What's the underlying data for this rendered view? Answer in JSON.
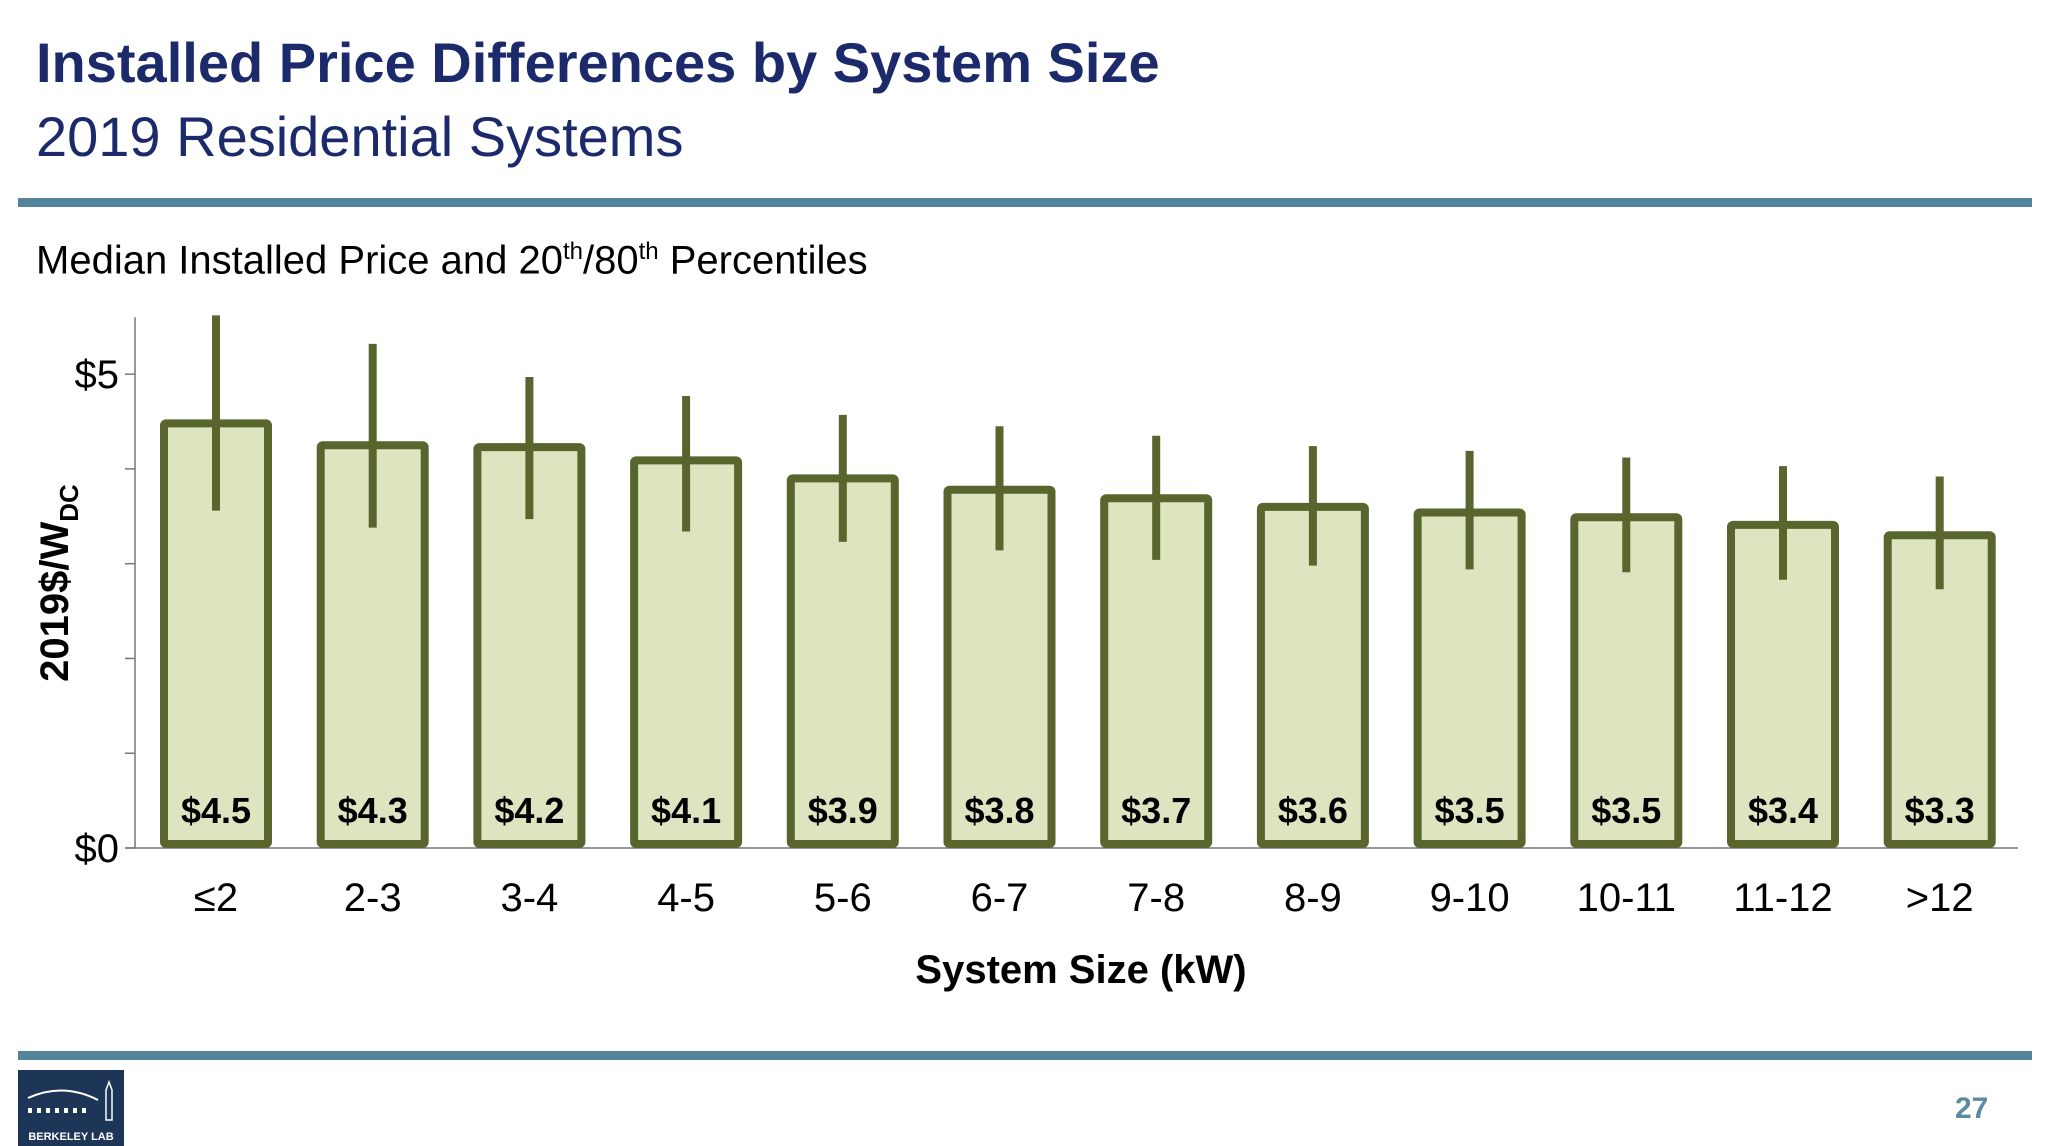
{
  "header": {
    "title": "Installed Price Differences by System Size",
    "subtitle": "2019 Residential Systems"
  },
  "chart_heading": {
    "text": "Median Installed Price and 20",
    "sup1": "th",
    "mid": "/80",
    "sup2": "th",
    "end": " Percentiles"
  },
  "chart_data": {
    "type": "bar",
    "title": "Median Installed Price and 20th/80th Percentiles",
    "xlabel": "System Size (kW)",
    "ylabel": "2019$/W",
    "ylabel_sub": "DC",
    "categories": [
      "≤2",
      "2-3",
      "3-4",
      "4-5",
      "5-6",
      "6-7",
      "7-8",
      "8-9",
      "9-10",
      "10-11",
      "11-12",
      ">12"
    ],
    "median": [
      4.48,
      4.25,
      4.23,
      4.09,
      3.9,
      3.78,
      3.69,
      3.6,
      3.54,
      3.49,
      3.41,
      3.3
    ],
    "p20": [
      3.56,
      3.38,
      3.47,
      3.34,
      3.23,
      3.14,
      3.04,
      2.98,
      2.94,
      2.91,
      2.83,
      2.73
    ],
    "p80": [
      5.62,
      5.32,
      4.97,
      4.77,
      4.57,
      4.45,
      4.35,
      4.24,
      4.19,
      4.12,
      4.03,
      3.92
    ],
    "data_labels": [
      "$4.5",
      "$4.3",
      "$4.2",
      "$4.1",
      "$3.9",
      "$3.8",
      "$3.7",
      "$3.6",
      "$3.5",
      "$3.5",
      "$3.4",
      "$3.3"
    ],
    "ylim": [
      0,
      5.6
    ],
    "yticks": [
      0,
      1,
      2,
      3,
      4,
      5
    ],
    "ytick_labels": {
      "0": "$0",
      "5": "$5"
    },
    "grid": false,
    "colors": {
      "bar_fill": "#dce4c0",
      "bar_stroke": "#58652d"
    }
  },
  "footer": {
    "logo_text": "BERKELEY LAB",
    "page_number": "27"
  }
}
